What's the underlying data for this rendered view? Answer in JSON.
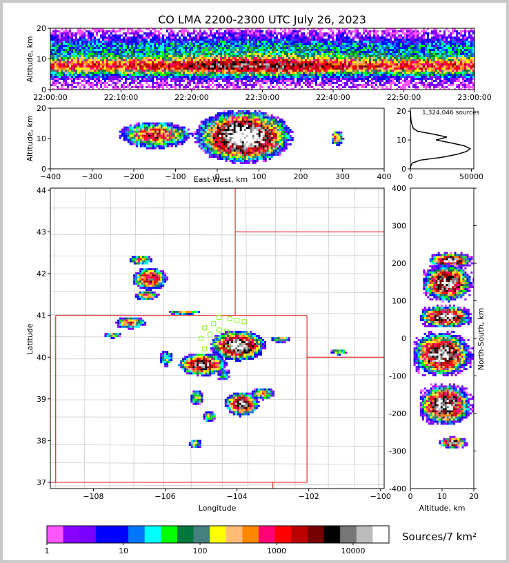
{
  "title": "CO LMA 2200-2300 UTC July 26, 2023",
  "colors": {
    "background": "#ffffff",
    "frame": "#c8c8c8",
    "state_border": "#e00000",
    "county_border": "#c8c8c8",
    "station_marker": "#7cfc00",
    "profile_line": "#000000"
  },
  "colorbar": {
    "label": "Sources/7 km²",
    "tick_labels": [
      "1",
      "10",
      "100",
      "1000",
      "10000"
    ],
    "colors": [
      "#ff55ff",
      "#8800ff",
      "#7700ff",
      "#0000ff",
      "#0000ff",
      "#0077ff",
      "#00ffff",
      "#00ff00",
      "#00773b",
      "#448080",
      "#ffff00",
      "#ffbb77",
      "#ff8800",
      "#ff0077",
      "#ff0000",
      "#bb0000",
      "#770000",
      "#000000",
      "#777777",
      "#bbbbbb",
      "#ffffff"
    ]
  },
  "sources_label": "1,324,046 sources",
  "chart_data": [
    {
      "id": "time-height",
      "type": "heatmap",
      "xlabel": "",
      "ylabel": "Altitude, km",
      "xticks": [
        "22:00:00",
        "22:10:00",
        "22:20:00",
        "22:30:00",
        "22:40:00",
        "22:50:00",
        "23:00:00"
      ],
      "xlim": [
        "22:00:00",
        "23:00:00"
      ],
      "yticks": [
        0,
        10,
        20
      ],
      "ylim": [
        0,
        20
      ],
      "peak_altitude_km": [
        6,
        12
      ]
    },
    {
      "id": "ew-altitude",
      "type": "heatmap",
      "xlabel": "East-West, km",
      "ylabel": "Altitude, km",
      "xticks": [
        -400,
        -300,
        -200,
        -100,
        0,
        100,
        200,
        300,
        400
      ],
      "xlim": [
        -400,
        400
      ],
      "yticks": [
        0,
        10,
        20
      ],
      "ylim": [
        0,
        20
      ],
      "clusters": [
        {
          "x": [
            -240,
            -60
          ],
          "z": [
            7,
            16
          ]
        },
        {
          "x": [
            -60,
            180
          ],
          "z": [
            2,
            20
          ]
        },
        {
          "x": [
            270,
            300
          ],
          "z": [
            8,
            13
          ]
        }
      ]
    },
    {
      "id": "altitude-histogram",
      "type": "line",
      "xticks": [
        0,
        50000
      ],
      "xlim": [
        0,
        52000
      ],
      "yticks": [
        0,
        10,
        20
      ],
      "ylim": [
        0,
        21
      ],
      "series": [
        {
          "z": [
            0,
            1,
            2,
            3,
            4,
            5,
            6,
            7,
            8,
            9,
            10,
            11,
            12,
            13,
            14,
            15,
            16,
            17,
            18,
            19,
            20
          ],
          "counts": [
            0,
            300,
            1500,
            8000,
            26000,
            38000,
            46000,
            49000,
            44000,
            33000,
            21000,
            30000,
            19000,
            6000,
            2500,
            1500,
            900,
            500,
            300,
            150,
            50
          ]
        }
      ]
    },
    {
      "id": "plan-view",
      "type": "heatmap",
      "xlabel": "Longitude",
      "ylabel": "Latitude",
      "xticks": [
        -108,
        -106,
        -104,
        -102,
        -100
      ],
      "xlim": [
        -109.2,
        -99.9
      ],
      "yticks": [
        37,
        38,
        39,
        40,
        41,
        42,
        43,
        44
      ],
      "ylim": [
        36.85,
        44.05
      ],
      "state_borders": [
        [
          [
            -109.05,
            41.0
          ],
          [
            -102.05,
            41.0
          ]
        ],
        [
          [
            -109.05,
            37.0
          ],
          [
            -109.05,
            41.0
          ]
        ],
        [
          [
            -109.2,
            37.0
          ],
          [
            -102.05,
            37.0
          ]
        ],
        [
          [
            -102.05,
            37.0
          ],
          [
            -102.05,
            41.0
          ]
        ],
        [
          [
            -104.05,
            41.0
          ],
          [
            -104.05,
            44.05
          ]
        ],
        [
          [
            -104.05,
            43.0
          ],
          [
            -99.9,
            43.0
          ]
        ],
        [
          [
            -102.05,
            40.0
          ],
          [
            -99.9,
            40.0
          ]
        ],
        [
          [
            -103.0,
            36.85
          ],
          [
            -103.0,
            37.0
          ]
        ]
      ],
      "storms": [
        {
          "lon": -106.7,
          "lat": 42.35,
          "size": [
            0.35,
            0.12
          ],
          "level": 0.6
        },
        {
          "lon": -106.45,
          "lat": 41.9,
          "size": [
            0.5,
            0.28
          ],
          "level": 0.8
        },
        {
          "lon": -106.55,
          "lat": 41.5,
          "size": [
            0.35,
            0.12
          ],
          "level": 0.6
        },
        {
          "lon": -107.0,
          "lat": 40.85,
          "size": [
            0.45,
            0.15
          ],
          "level": 0.65
        },
        {
          "lon": -107.5,
          "lat": 40.55,
          "size": [
            0.25,
            0.08
          ],
          "level": 0.5
        },
        {
          "lon": -105.5,
          "lat": 41.1,
          "size": [
            0.45,
            0.06
          ],
          "level": 0.6
        },
        {
          "lon": -104.0,
          "lat": 40.3,
          "size": [
            0.8,
            0.38
          ],
          "level": 1.0
        },
        {
          "lon": -105.0,
          "lat": 39.85,
          "size": [
            0.7,
            0.28
          ],
          "level": 0.9
        },
        {
          "lon": -103.9,
          "lat": 38.9,
          "size": [
            0.5,
            0.3
          ],
          "level": 0.9
        },
        {
          "lon": -103.3,
          "lat": 39.15,
          "size": [
            0.35,
            0.15
          ],
          "level": 0.6
        },
        {
          "lon": -105.15,
          "lat": 39.05,
          "size": [
            0.2,
            0.2
          ],
          "level": 0.5
        },
        {
          "lon": -104.8,
          "lat": 38.6,
          "size": [
            0.2,
            0.15
          ],
          "level": 0.5
        },
        {
          "lon": -105.2,
          "lat": 37.95,
          "size": [
            0.2,
            0.12
          ],
          "level": 0.5
        },
        {
          "lon": -102.8,
          "lat": 40.45,
          "size": [
            0.3,
            0.08
          ],
          "level": 0.55
        },
        {
          "lon": -101.2,
          "lat": 40.15,
          "size": [
            0.25,
            0.08
          ],
          "level": 0.5
        },
        {
          "lon": -104.4,
          "lat": 39.6,
          "size": [
            0.2,
            0.15
          ],
          "level": 0.35
        },
        {
          "lon": -106.0,
          "lat": 40.0,
          "size": [
            0.2,
            0.2
          ],
          "level": 0.4
        }
      ],
      "stations": [
        [
          -104.5,
          40.95
        ],
        [
          -104.2,
          40.92
        ],
        [
          -104.9,
          40.7
        ],
        [
          -104.65,
          40.8
        ],
        [
          -104.0,
          40.88
        ],
        [
          -103.8,
          40.85
        ],
        [
          -104.5,
          40.65
        ],
        [
          -104.3,
          40.6
        ],
        [
          -104.75,
          40.55
        ],
        [
          -105.0,
          40.45
        ],
        [
          -104.55,
          40.43
        ],
        [
          -103.7,
          40.55
        ],
        [
          -104.9,
          40.2
        ],
        [
          -104.25,
          40.25
        ]
      ]
    },
    {
      "id": "ns-altitude",
      "type": "heatmap",
      "xlabel": "Altitude, km",
      "ylabel": "North-South, km",
      "xticks": [
        0,
        10,
        20
      ],
      "xlim": [
        0,
        20
      ],
      "yticks": [
        -400,
        -300,
        -200,
        -100,
        0,
        100,
        200,
        300,
        400
      ],
      "ylim": [
        -400,
        400
      ],
      "clusters": [
        {
          "y": [
            190,
            230
          ],
          "z": [
            6,
            20
          ]
        },
        {
          "y": [
            100,
            200
          ],
          "z": [
            4,
            20
          ]
        },
        {
          "y": [
            30,
            90
          ],
          "z": [
            3,
            20
          ]
        },
        {
          "y": [
            -100,
            20
          ],
          "z": [
            1,
            20
          ]
        },
        {
          "y": [
            -230,
            -120
          ],
          "z": [
            3,
            20
          ]
        },
        {
          "y": [
            -290,
            -260
          ],
          "z": [
            9,
            18
          ]
        }
      ]
    }
  ]
}
